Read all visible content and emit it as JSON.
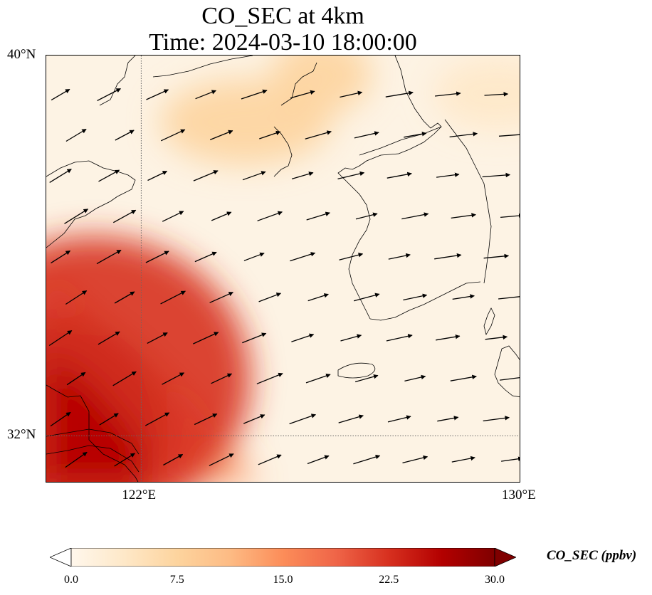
{
  "title": {
    "line1": "CO_SEC at 4km",
    "line2": "Time: 2024-03-10 18:00:00"
  },
  "map": {
    "extent": {
      "lon_min": 120,
      "lon_max": 130,
      "lat_min": 31,
      "lat_max": 40
    },
    "gridlines_lon": [
      122
    ],
    "gridlines_lat": [
      32
    ],
    "lat_labels": [
      {
        "lat": 40,
        "text": "40°N"
      },
      {
        "lat": 32,
        "text": "32°N"
      }
    ],
    "lon_labels": [
      {
        "lon": 122,
        "text": "122°E"
      },
      {
        "lon": 130,
        "text": "130°E"
      }
    ],
    "field_description": "CO_SEC concentration field",
    "high_regions": [
      {
        "region": "Yangtze delta / Shanghai",
        "lon": 120.3,
        "lat": 32.2,
        "value": 30
      },
      {
        "region": "East China coast",
        "lon": 121.0,
        "lat": 33.2,
        "value": 21
      },
      {
        "region": "Bohai / Liaodong",
        "lon": 125.8,
        "lat": 39.6,
        "value": 9
      },
      {
        "region": "Northern Yellow Sea",
        "lon": 124.2,
        "lat": 38.6,
        "value": 6
      },
      {
        "region": "NE Korea",
        "lon": 129.5,
        "lat": 39.2,
        "value": 4
      }
    ],
    "wind_vectors_note": "Wind arrows predominantly pointing east to northeast"
  },
  "colorbar": {
    "label": "CO_SEC (ppbv)",
    "min": 0,
    "max": 30,
    "ticks": [
      "0.0",
      "7.5",
      "15.0",
      "22.5",
      "30.0"
    ],
    "extend": "both",
    "colormap": "OrRd",
    "colors": [
      "#fff7ec",
      "#fee8c8",
      "#fdd49e",
      "#fdbb84",
      "#fc8d59",
      "#ef6548",
      "#d7301f",
      "#b30000",
      "#7f0000"
    ]
  }
}
